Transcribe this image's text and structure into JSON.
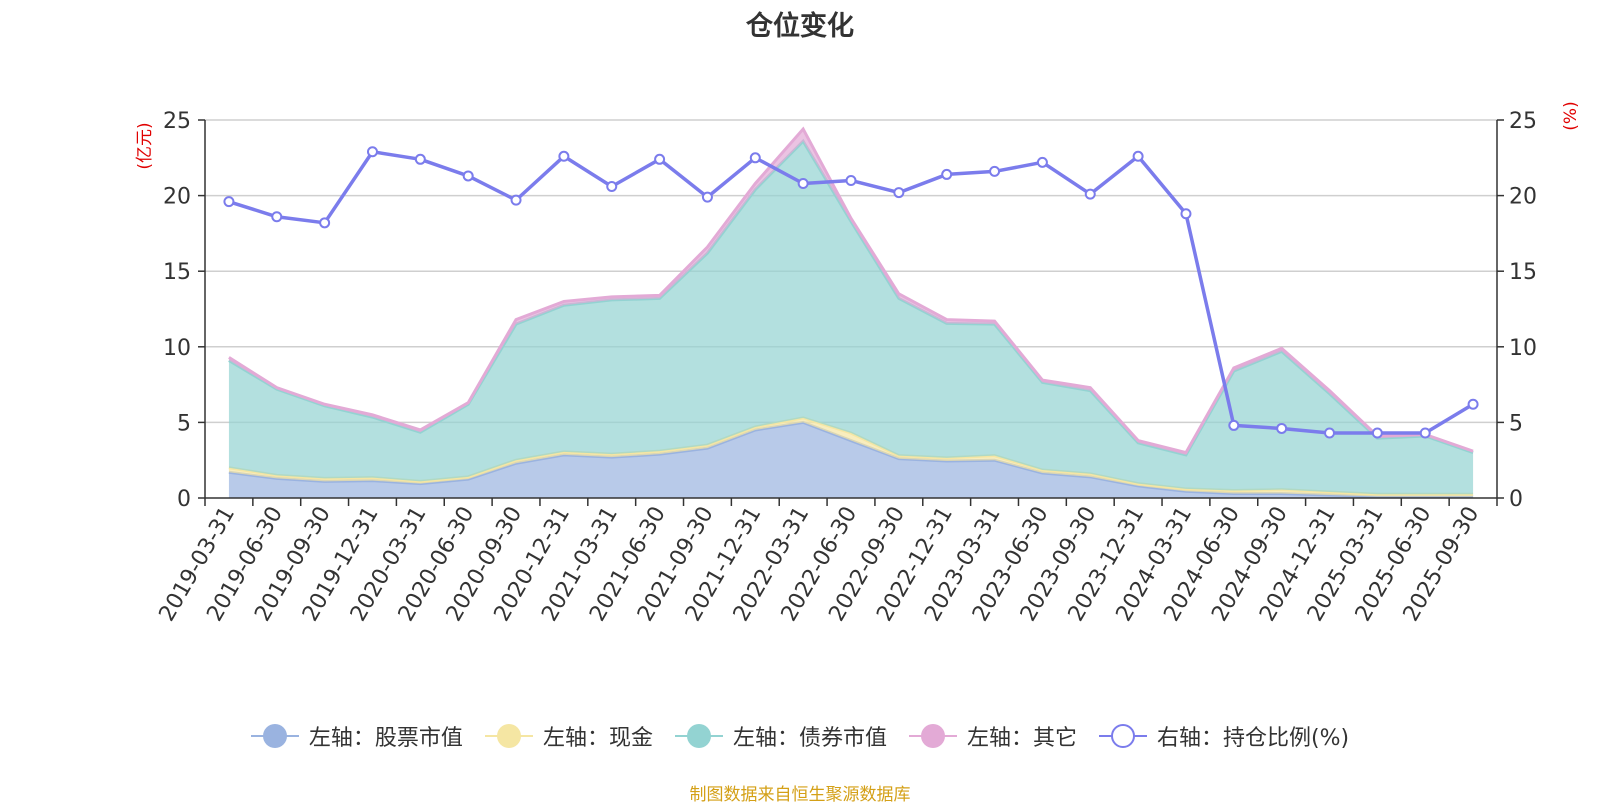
{
  "chart_data": {
    "type": "area",
    "title": "仓位变化",
    "left_axis_unit": "(亿元)",
    "right_axis_unit": "(%)",
    "left_ylim": [
      0,
      25
    ],
    "right_ylim": [
      0,
      25
    ],
    "left_ticks": [
      0,
      5,
      10,
      15,
      20,
      25
    ],
    "right_ticks": [
      0,
      5,
      10,
      15,
      20,
      25
    ],
    "grid": true,
    "categories": [
      "2019-03-31",
      "2019-06-30",
      "2019-09-30",
      "2019-12-31",
      "2020-03-31",
      "2020-06-30",
      "2020-09-30",
      "2020-12-31",
      "2021-03-31",
      "2021-06-30",
      "2021-09-30",
      "2021-12-31",
      "2022-03-31",
      "2022-06-30",
      "2022-09-30",
      "2022-12-31",
      "2023-03-31",
      "2023-06-30",
      "2023-09-30",
      "2023-12-31",
      "2024-03-31",
      "2024-06-30",
      "2024-09-30",
      "2024-12-31",
      "2025-03-31",
      "2025-06-30",
      "2025-09-30"
    ],
    "series": [
      {
        "name": "左轴：股票市值",
        "axis": "left",
        "type": "stacked-area",
        "color": "#9ab3e0",
        "values": [
          1.7,
          1.3,
          1.1,
          1.15,
          0.95,
          1.25,
          2.3,
          2.85,
          2.7,
          2.9,
          3.3,
          4.5,
          5.0,
          3.8,
          2.6,
          2.45,
          2.5,
          1.65,
          1.4,
          0.8,
          0.45,
          0.3,
          0.3,
          0.2,
          0.1,
          0.1,
          0.1
        ]
      },
      {
        "name": "左轴：现金",
        "axis": "left",
        "type": "stacked-area",
        "color": "#f5e6a3",
        "values": [
          0.3,
          0.2,
          0.2,
          0.2,
          0.15,
          0.15,
          0.2,
          0.2,
          0.2,
          0.2,
          0.2,
          0.2,
          0.3,
          0.5,
          0.2,
          0.2,
          0.3,
          0.2,
          0.2,
          0.15,
          0.15,
          0.2,
          0.25,
          0.2,
          0.15,
          0.15,
          0.15
        ]
      },
      {
        "name": "左轴：债券市值",
        "axis": "left",
        "type": "stacked-area",
        "color": "#93d3d2",
        "values": [
          7.1,
          5.7,
          4.8,
          4.0,
          3.25,
          4.8,
          9.0,
          9.7,
          10.2,
          10.1,
          12.7,
          15.7,
          18.3,
          14.0,
          10.4,
          8.9,
          8.7,
          5.8,
          5.5,
          2.7,
          2.25,
          7.9,
          9.15,
          6.5,
          3.7,
          3.85,
          2.75
        ]
      },
      {
        "name": "左轴：其它",
        "axis": "left",
        "type": "stacked-area",
        "color": "#e3aad6",
        "values": [
          0.2,
          0.1,
          0.1,
          0.15,
          0.15,
          0.1,
          0.3,
          0.25,
          0.2,
          0.2,
          0.4,
          0.4,
          0.8,
          0.2,
          0.3,
          0.25,
          0.2,
          0.15,
          0.2,
          0.15,
          0.15,
          0.2,
          0.2,
          0.2,
          0.15,
          0.1,
          0.1
        ]
      },
      {
        "name": "右轴：持仓比例(%)",
        "axis": "right",
        "type": "line",
        "color": "#7b7cec",
        "values": [
          19.6,
          18.6,
          18.2,
          22.9,
          22.4,
          21.3,
          19.7,
          22.6,
          20.6,
          22.4,
          19.9,
          22.5,
          20.8,
          21.0,
          20.2,
          21.4,
          21.6,
          22.2,
          20.1,
          22.6,
          18.8,
          4.8,
          4.6,
          4.3,
          4.3,
          4.3,
          6.2
        ]
      }
    ]
  },
  "source_note": "制图数据来自恒生聚源数据库"
}
